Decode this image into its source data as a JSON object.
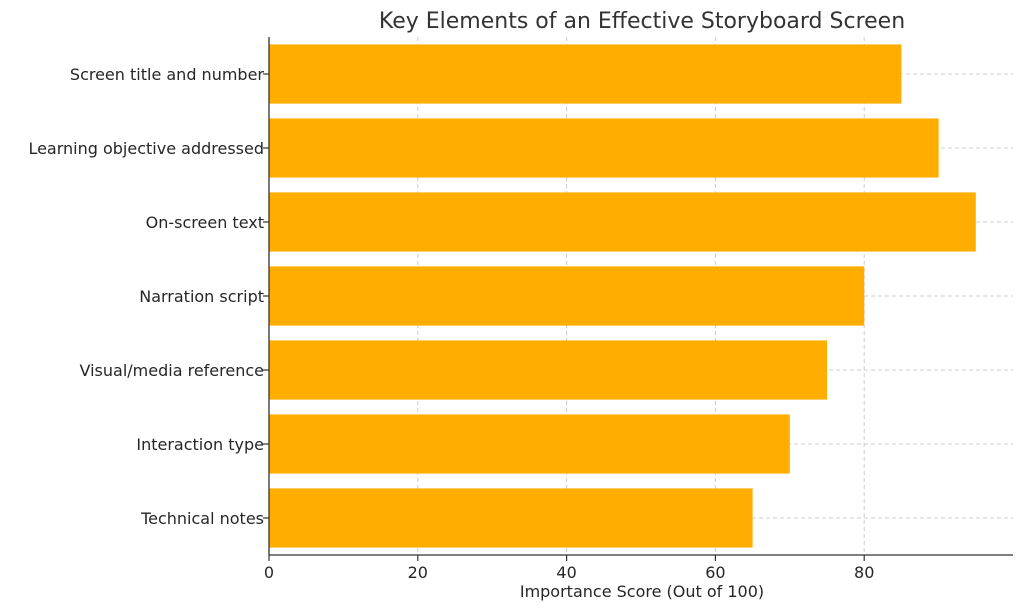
{
  "chart_data": {
    "type": "bar",
    "orientation": "horizontal",
    "title": "Key Elements of an Effective Storyboard Screen",
    "xlabel": "Importance Score (Out of 100)",
    "ylabel": "",
    "categories": [
      "Screen title and number",
      "Learning objective addressed",
      "On-screen text",
      "Narration script",
      "Visual/media reference",
      "Interaction type",
      "Technical notes"
    ],
    "values": [
      85,
      90,
      95,
      80,
      75,
      70,
      65
    ],
    "xlim": [
      0,
      100
    ],
    "xticks": [
      0,
      20,
      40,
      60,
      80
    ],
    "grid": true,
    "bar_color": "#FFAE00",
    "legend": false
  }
}
